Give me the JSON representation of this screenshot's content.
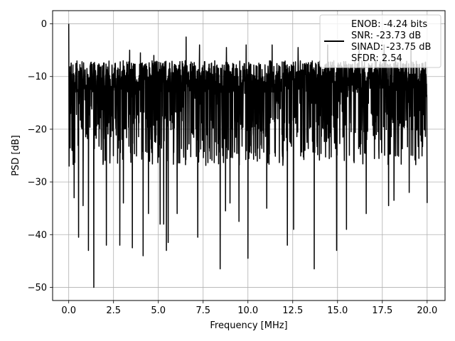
{
  "chart_data": {
    "type": "line",
    "xlabel": "Frequency [MHz]",
    "ylabel": "PSD [dB]",
    "xlim": [
      -0.9,
      21.0
    ],
    "ylim": [
      -52.5,
      2.5
    ],
    "xticks": [
      0.0,
      2.5,
      5.0,
      7.5,
      10.0,
      12.5,
      15.0,
      17.5,
      20.0
    ],
    "xtick_labels": [
      "0.0",
      "2.5",
      "5.0",
      "7.5",
      "10.0",
      "12.5",
      "15.0",
      "17.5",
      "20.0"
    ],
    "yticks": [
      0,
      -10,
      -20,
      -30,
      -40,
      -50
    ],
    "ytick_labels": [
      "0",
      "−10",
      "−20",
      "−30",
      "−40",
      "−50"
    ],
    "grid": true,
    "legend_position": "top-right",
    "series": [
      {
        "color": "#000000",
        "x_range": [
          0.0,
          20.0
        ],
        "n_points": 2048,
        "approx_band_top_db": -7,
        "approx_band_bottom_db": -27,
        "peak": {
          "x": 0.0,
          "y": 0.0
        },
        "deep_dips": [
          {
            "x": 0.3,
            "y": -33
          },
          {
            "x": 0.55,
            "y": -40.5
          },
          {
            "x": 0.8,
            "y": -34.5
          },
          {
            "x": 1.1,
            "y": -43
          },
          {
            "x": 1.4,
            "y": -50
          },
          {
            "x": 2.1,
            "y": -42
          },
          {
            "x": 2.85,
            "y": -42
          },
          {
            "x": 3.05,
            "y": -34
          },
          {
            "x": 3.55,
            "y": -42.5
          },
          {
            "x": 4.15,
            "y": -44
          },
          {
            "x": 4.45,
            "y": -36
          },
          {
            "x": 5.1,
            "y": -38
          },
          {
            "x": 5.3,
            "y": -38
          },
          {
            "x": 5.45,
            "y": -43
          },
          {
            "x": 5.55,
            "y": -41.5
          },
          {
            "x": 6.05,
            "y": -36
          },
          {
            "x": 7.2,
            "y": -40.5
          },
          {
            "x": 8.45,
            "y": -46.5
          },
          {
            "x": 8.75,
            "y": -35.5
          },
          {
            "x": 9.0,
            "y": -34
          },
          {
            "x": 9.5,
            "y": -37.5
          },
          {
            "x": 10.0,
            "y": -44.5
          },
          {
            "x": 11.05,
            "y": -35
          },
          {
            "x": 12.2,
            "y": -42
          },
          {
            "x": 12.55,
            "y": -39
          },
          {
            "x": 13.7,
            "y": -46.5
          },
          {
            "x": 14.45,
            "y": -33
          },
          {
            "x": 14.95,
            "y": -43
          },
          {
            "x": 15.5,
            "y": -39
          },
          {
            "x": 16.6,
            "y": -36
          },
          {
            "x": 17.85,
            "y": -34.5
          },
          {
            "x": 18.15,
            "y": -33.5
          },
          {
            "x": 19.0,
            "y": -32
          },
          {
            "x": 20.0,
            "y": -34
          }
        ],
        "high_spikes": [
          {
            "x": 3.4,
            "y": -5
          },
          {
            "x": 4.0,
            "y": -5.5
          },
          {
            "x": 4.75,
            "y": -6
          },
          {
            "x": 6.55,
            "y": -2.5
          },
          {
            "x": 7.3,
            "y": -4
          },
          {
            "x": 8.8,
            "y": -4.5
          },
          {
            "x": 9.9,
            "y": -4
          },
          {
            "x": 11.35,
            "y": -4
          },
          {
            "x": 12.8,
            "y": -4.5
          },
          {
            "x": 14.45,
            "y": -4
          },
          {
            "x": 16.2,
            "y": -4
          },
          {
            "x": 17.6,
            "y": -4
          },
          {
            "x": 19.1,
            "y": -4.5
          }
        ]
      }
    ],
    "legend": [
      "ENOB: -4.24 bits",
      "SNR: -23.73 dB",
      "SINAD: -23.75 dB",
      "SFDR: 2.54"
    ]
  }
}
